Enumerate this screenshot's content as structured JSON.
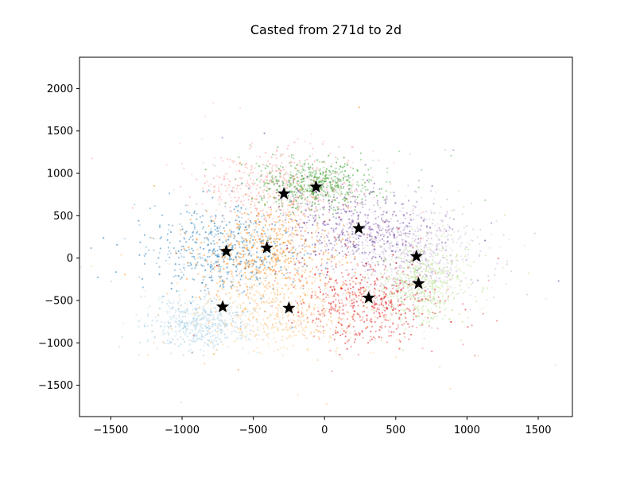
{
  "chart_data": {
    "type": "scatter",
    "title": "Casted from 271d to 2d",
    "xlabel": "",
    "ylabel": "",
    "xlim": [
      -1720,
      1740
    ],
    "ylim": [
      -1870,
      2370
    ],
    "x_ticks": [
      -1500,
      -1000,
      -500,
      0,
      500,
      1000,
      1500
    ],
    "y_ticks": [
      -1500,
      -1000,
      -500,
      0,
      500,
      1000,
      1500,
      2000
    ],
    "grid": false,
    "legend": "none",
    "clusters": [
      {
        "color": "#1f78b4",
        "center": [
          -720,
          100
        ],
        "spread": [
          240,
          260
        ]
      },
      {
        "color": "#a6cee3",
        "center": [
          -880,
          -760
        ],
        "spread": [
          180,
          150
        ]
      },
      {
        "color": "#ff7f00",
        "center": [
          -400,
          60
        ],
        "spread": [
          230,
          260
        ]
      },
      {
        "color": "#fdbf6f",
        "center": [
          -270,
          -620
        ],
        "spread": [
          300,
          220
        ]
      },
      {
        "color": "#fb9a99",
        "center": [
          -300,
          820
        ],
        "spread": [
          260,
          220
        ]
      },
      {
        "color": "#33a02c",
        "center": [
          -60,
          870
        ],
        "spread": [
          200,
          140
        ]
      },
      {
        "color": "#6a3d9a",
        "center": [
          250,
          330
        ],
        "spread": [
          260,
          260
        ]
      },
      {
        "color": "#cab2d6",
        "center": [
          640,
          60
        ],
        "spread": [
          230,
          260
        ]
      },
      {
        "color": "#b2df8a",
        "center": [
          680,
          -300
        ],
        "spread": [
          150,
          230
        ]
      },
      {
        "color": "#e31a1c",
        "center": [
          320,
          -520
        ],
        "spread": [
          240,
          240
        ]
      }
    ],
    "centroids": [
      {
        "x": -690,
        "y": 80
      },
      {
        "x": -405,
        "y": 120
      },
      {
        "x": -285,
        "y": 760
      },
      {
        "x": -60,
        "y": 840
      },
      {
        "x": 240,
        "y": 350
      },
      {
        "x": 645,
        "y": 20
      },
      {
        "x": 660,
        "y": -300
      },
      {
        "x": 310,
        "y": -470
      },
      {
        "x": -250,
        "y": -590
      },
      {
        "x": -715,
        "y": -575
      }
    ]
  }
}
